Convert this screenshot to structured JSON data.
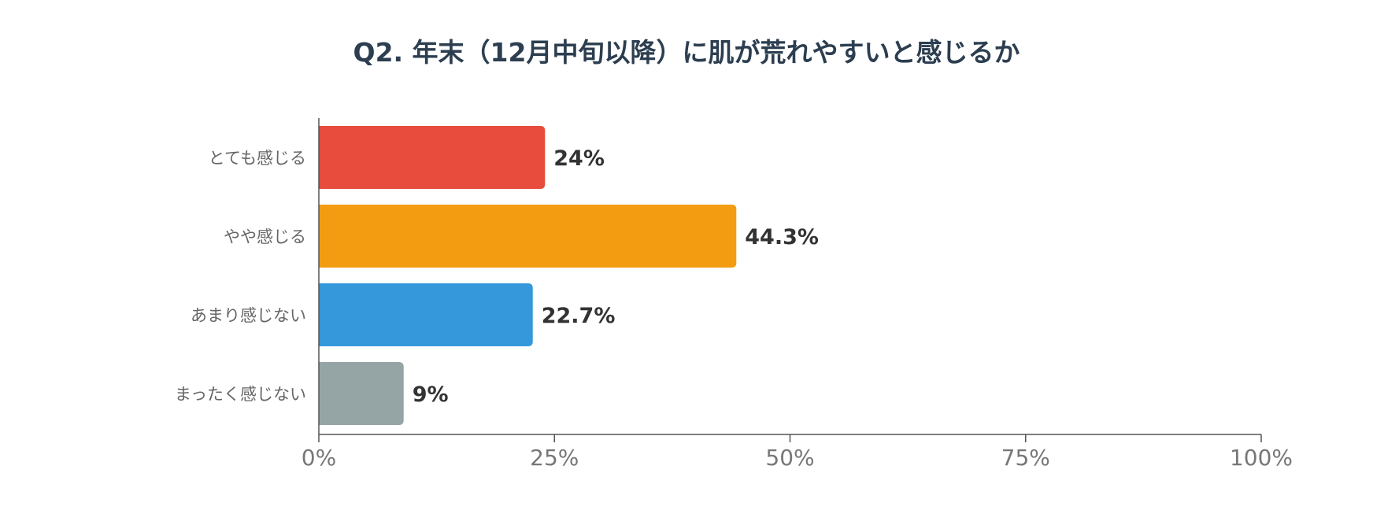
{
  "chart_data": {
    "type": "bar",
    "orientation": "horizontal",
    "title": "Q2. 年末（12月中旬以降）に肌が荒れやすいと感じるか",
    "categories": [
      "とても感じる",
      "やや感じる",
      "あまり感じない",
      "まったく感じない"
    ],
    "values": [
      24,
      44.3,
      22.7,
      9
    ],
    "value_labels": [
      "24%",
      "44.3%",
      "22.7%",
      "9%"
    ],
    "colors": [
      "#e74c3c",
      "#f39c12",
      "#3498db",
      "#95a5a6"
    ],
    "xlim": [
      0,
      100
    ],
    "x_ticks": [
      0,
      25,
      50,
      75,
      100
    ],
    "x_tick_labels": [
      "0%",
      "25%",
      "50%",
      "75%",
      "100%"
    ],
    "grid": false,
    "legend": "none"
  }
}
